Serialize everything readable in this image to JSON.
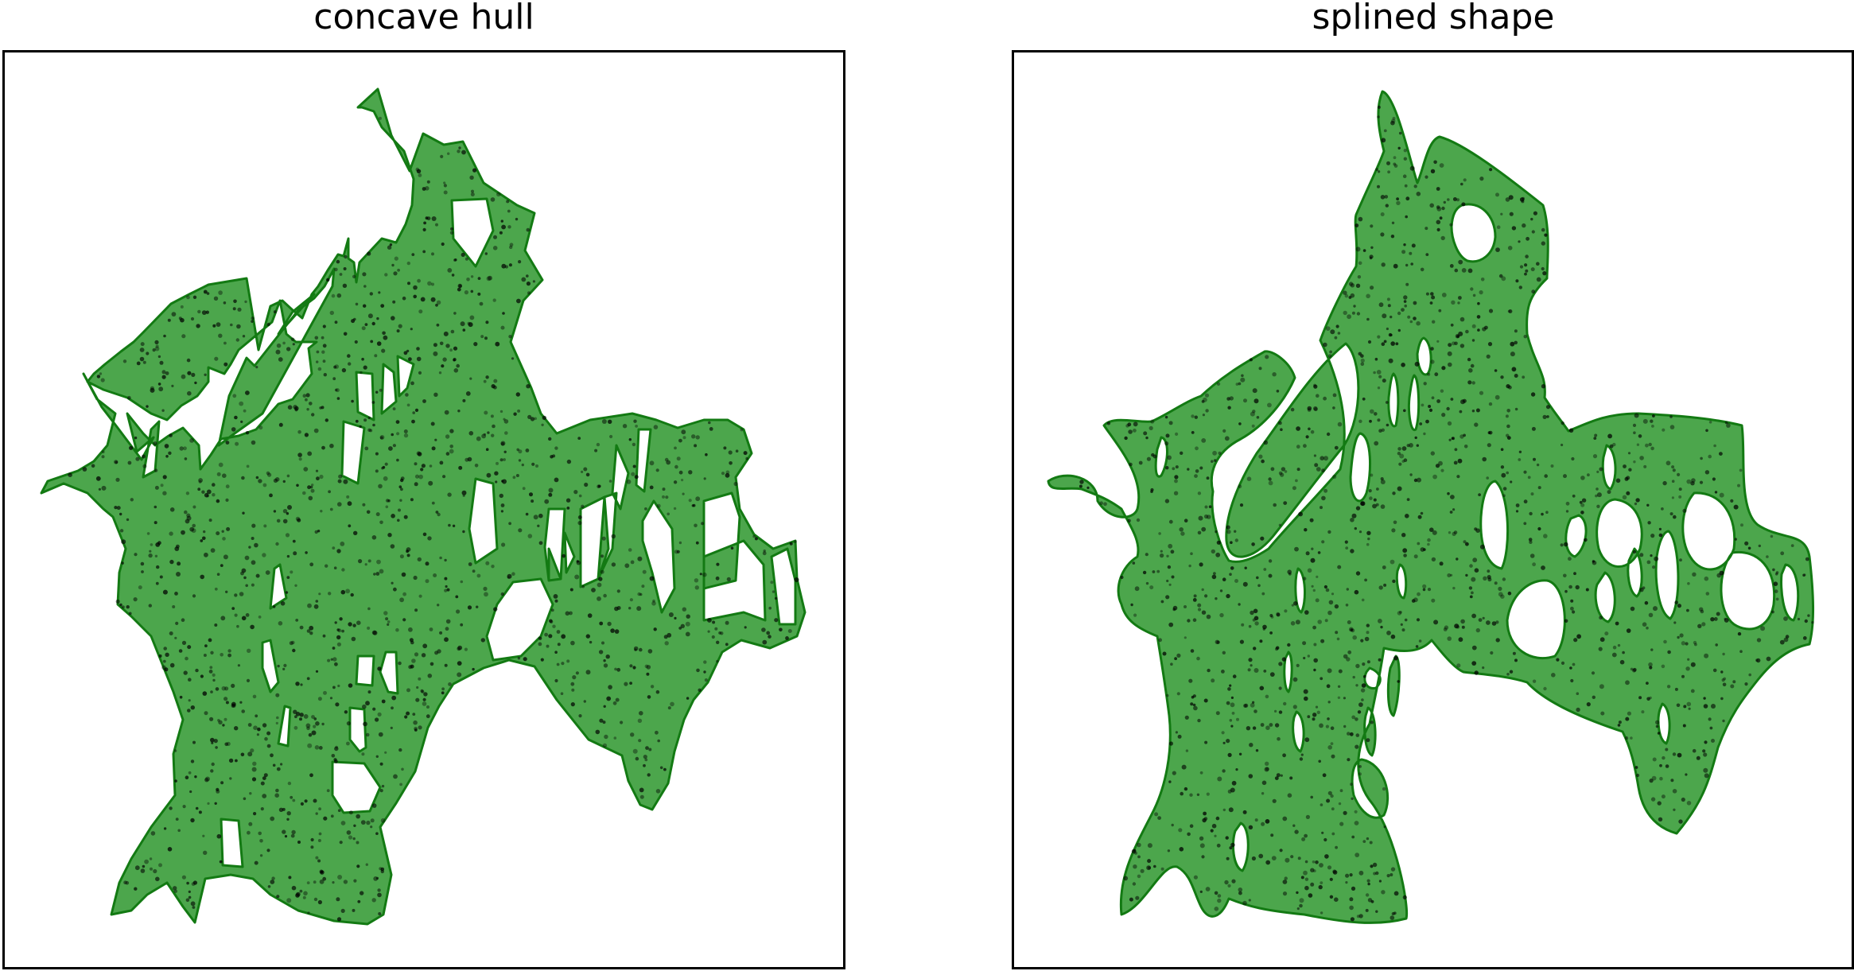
{
  "panels": [
    {
      "title": "concave hull"
    },
    {
      "title": "splined shape"
    }
  ],
  "colors": {
    "fill": "#4ca64c",
    "edge": "#137a13",
    "points": "#000000",
    "frame": "#000000",
    "background": "#ffffff"
  }
}
